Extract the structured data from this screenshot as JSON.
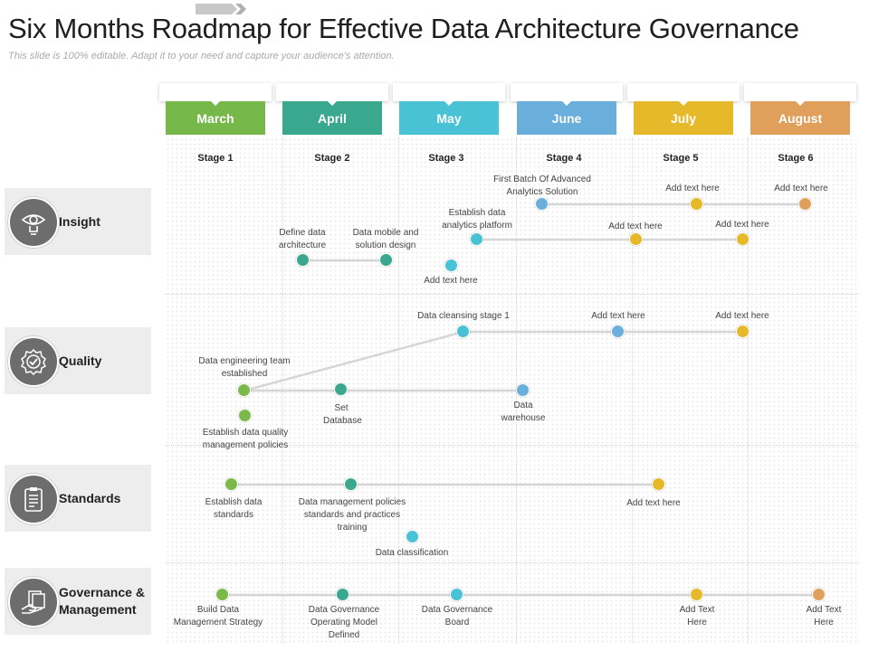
{
  "header": {
    "title": "Six Months Roadmap for Effective Data Architecture Governance",
    "subtitle": "This slide is 100% editable. Adapt it to your need and capture your audience's attention."
  },
  "colors": {
    "green": "#7cb94b",
    "teal": "#3aa88f",
    "cyan": "#48c2d4",
    "blue": "#6aaedb",
    "yellow": "#e6b92a",
    "orange": "#e0a05c",
    "connector": "#d6d6d6"
  },
  "months": [
    {
      "label": "March",
      "color": "#77b84a",
      "stage": "Stage 1"
    },
    {
      "label": "April",
      "color": "#3aa88f",
      "stage": "Stage 2"
    },
    {
      "label": "May",
      "color": "#48c2d4",
      "stage": "Stage 3"
    },
    {
      "label": "June",
      "color": "#6aaedb",
      "stage": "Stage 4"
    },
    {
      "label": "July",
      "color": "#e6b92a",
      "stage": "Stage 5"
    },
    {
      "label": "August",
      "color": "#e0a05c",
      "stage": "Stage 6"
    }
  ],
  "categories": [
    {
      "label": "Insight",
      "icon": "lightbulb-eye-icon"
    },
    {
      "label": "Quality",
      "icon": "quality-badge-icon"
    },
    {
      "label": "Standards",
      "icon": "clipboard-list-icon"
    },
    {
      "label": "Governance & Management",
      "icon": "hand-documents-icon"
    }
  ],
  "milestones": {
    "insight": [
      {
        "id": "adv",
        "text": "First Batch Of Advanced Analytics Solution",
        "color": "blue"
      },
      {
        "id": "i_a1",
        "text": "Add text here",
        "color": "yellow"
      },
      {
        "id": "i_a2",
        "text": "Add text here",
        "color": "orange"
      },
      {
        "id": "plat",
        "text": "Establish data analytics platform",
        "color": "cyan"
      },
      {
        "id": "i_a3",
        "text": "Add text here",
        "color": "yellow"
      },
      {
        "id": "i_a4",
        "text": "Add text here",
        "color": "yellow"
      },
      {
        "id": "def",
        "text": "Define data architecture",
        "color": "teal"
      },
      {
        "id": "mob",
        "text": "Data mobile and solution design",
        "color": "teal"
      },
      {
        "id": "i_a5",
        "text": "Add text here",
        "color": "cyan"
      }
    ],
    "quality": [
      {
        "id": "clean",
        "text": "Data cleansing stage 1",
        "color": "cyan"
      },
      {
        "id": "q_a1",
        "text": "Add text here",
        "color": "blue"
      },
      {
        "id": "q_a2",
        "text": "Add text here",
        "color": "yellow"
      },
      {
        "id": "eng",
        "text": "Data engineering team established",
        "color": "green"
      },
      {
        "id": "setdb",
        "text": "Set Database",
        "color": "teal"
      },
      {
        "id": "wh",
        "text": "Data warehouse",
        "color": "blue"
      },
      {
        "id": "pol",
        "text": "Establish data quality management policies",
        "color": "green"
      }
    ],
    "standards": [
      {
        "id": "estd",
        "text": "Establish data standards",
        "color": "green"
      },
      {
        "id": "mgmt",
        "text": "Data management policies standards and practices training",
        "color": "teal"
      },
      {
        "id": "s_a1",
        "text": "Add text here",
        "color": "yellow"
      },
      {
        "id": "cls",
        "text": "Data classification",
        "color": "cyan"
      }
    ],
    "governance": [
      {
        "id": "build",
        "text": "Build Data Management Strategy",
        "color": "green"
      },
      {
        "id": "opm",
        "text": "Data Governance Operating Model Defined",
        "color": "teal"
      },
      {
        "id": "board",
        "text": "Data Governance Board",
        "color": "cyan"
      },
      {
        "id": "g_a1",
        "text": "Add Text Here",
        "color": "yellow"
      },
      {
        "id": "g_a2",
        "text": "Add Text Here",
        "color": "orange"
      }
    ]
  }
}
